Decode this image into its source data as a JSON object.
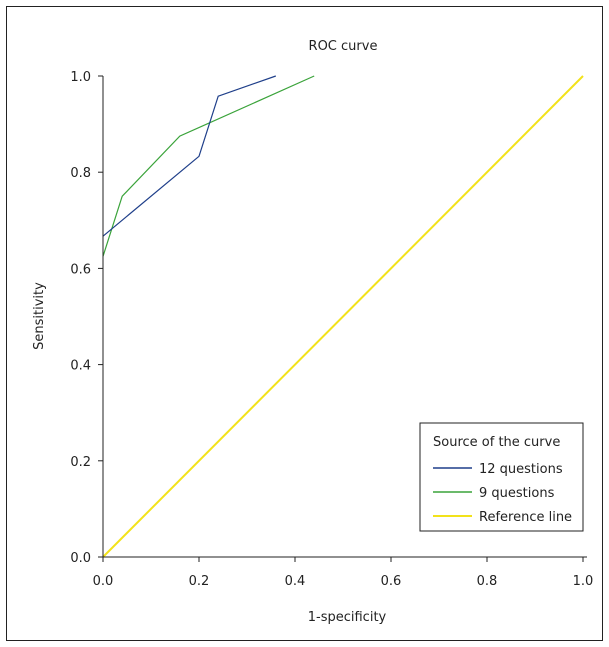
{
  "chart_data": {
    "type": "line",
    "title": "ROC curve",
    "xlabel": "1-specificity",
    "ylabel": "Sensitivity",
    "xlim": [
      0,
      1
    ],
    "ylim": [
      0,
      1
    ],
    "x_ticks": [
      "0.0",
      "0.2",
      "0.4",
      "0.6",
      "0.8",
      "1.0"
    ],
    "y_ticks": [
      "0.0",
      "0.2",
      "0.4",
      "0.6",
      "0.8",
      "1.0"
    ],
    "grid": false,
    "legend": {
      "title": "Source of the curve",
      "placement": "bottom-right"
    },
    "series": [
      {
        "name": "12 questions",
        "color": "#1f3f8a",
        "points": [
          [
            0.0,
            0.667
          ],
          [
            0.2,
            0.833
          ],
          [
            0.24,
            0.958
          ],
          [
            0.36,
            1.0
          ]
        ]
      },
      {
        "name": "9 questions",
        "color": "#3aa33a",
        "points": [
          [
            0.0,
            0.625
          ],
          [
            0.04,
            0.75
          ],
          [
            0.16,
            0.875
          ],
          [
            0.44,
            1.0
          ]
        ]
      },
      {
        "name": "Reference line",
        "color": "#f2e21a",
        "points": [
          [
            0.0,
            0.0
          ],
          [
            1.0,
            1.0
          ]
        ]
      }
    ]
  }
}
